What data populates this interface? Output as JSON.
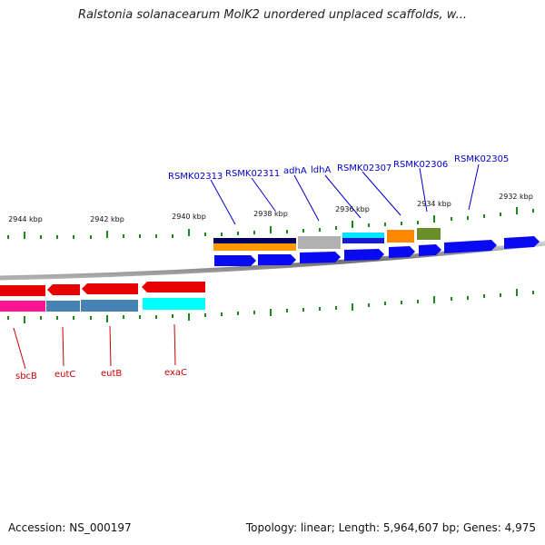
{
  "title": "Ralstonia solanacearum MolK2 unordered unplaced scaffolds, w...",
  "footer": {
    "accession": "Accession: NS_000197",
    "topology": "Topology: linear; Length: 5,964,607 bp; Genes: 4,975"
  },
  "ticks": [
    "2944 kbp",
    "2942 kbp",
    "2940 kbp",
    "2938 kbp",
    "2936 kbp",
    "2934 kbp",
    "2932 kbp"
  ],
  "genes_top": [
    "RSMK02313",
    "RSMK02311",
    "adhA",
    "ldhA",
    "RSMK02307",
    "RSMK02306",
    "RSMK02305"
  ],
  "genes_bottom": [
    "sbcB",
    "eutC",
    "eutB",
    "exaC"
  ],
  "colors": {
    "label_top": "#0000cc",
    "label_bottom": "#cc0000",
    "tick": "#1a8a1a",
    "axis": "#888888",
    "strand_blue": "#0a0af0",
    "strand_red": "#e60000"
  }
}
